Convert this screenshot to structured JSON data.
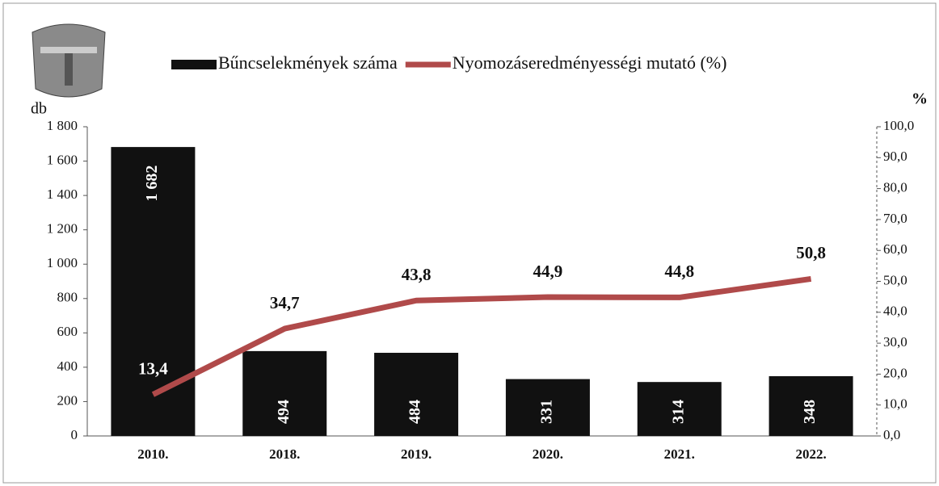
{
  "chart_data": {
    "type": "bar",
    "categories": [
      "2010.",
      "2018.",
      "2019.",
      "2020.",
      "2021.",
      "2022."
    ],
    "series": [
      {
        "name": "Bűncselekmények száma",
        "color": "#111111",
        "values": [
          1682,
          494,
          484,
          331,
          314,
          348
        ],
        "value_labels": [
          "1 682",
          "494",
          "484",
          "331",
          "314",
          "348"
        ]
      },
      {
        "name": "Nyomozáseredményességi mutató (%)",
        "type": "line",
        "axis": "y2",
        "color": "#b04a4a",
        "values": [
          13.4,
          34.7,
          43.8,
          44.9,
          44.8,
          50.8
        ],
        "value_labels": [
          "13,4",
          "34,7",
          "43,8",
          "44,9",
          "44,8",
          "50,8"
        ]
      }
    ],
    "ylabel": "db",
    "y2label": "%",
    "ylim": [
      0,
      1800
    ],
    "yticks": [
      0,
      200,
      400,
      600,
      800,
      {
        "value": 1000,
        "label": "1 000"
      },
      {
        "value": 1200,
        "label": "1 200"
      },
      {
        "value": 1400,
        "label": "1 400"
      },
      {
        "value": 1600,
        "label": "1 600"
      },
      {
        "value": 1800,
        "label": "1 800"
      }
    ],
    "y2lim": [
      0,
      100
    ],
    "y2ticks": [
      {
        "value": 0,
        "label": "0,0"
      },
      {
        "value": 10,
        "label": "10,0"
      },
      {
        "value": 20,
        "label": "20,0"
      },
      {
        "value": 30,
        "label": "30,0"
      },
      {
        "value": 40,
        "label": "40,0"
      },
      {
        "value": 50,
        "label": "50,0"
      },
      {
        "value": 60,
        "label": "60,0"
      },
      {
        "value": 70,
        "label": "70,0"
      },
      {
        "value": 80,
        "label": "80,0"
      },
      {
        "value": 90,
        "label": "90,0"
      },
      {
        "value": 100,
        "label": "100,0"
      }
    ],
    "legend": "top"
  }
}
